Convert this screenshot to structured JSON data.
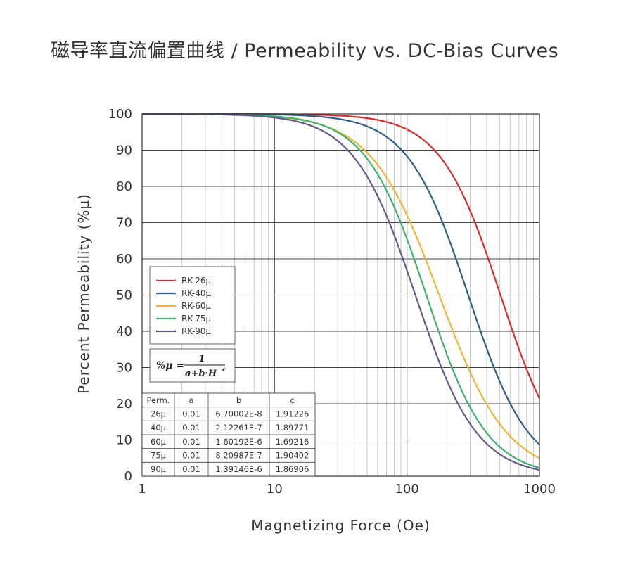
{
  "page": {
    "title": "磁导率直流偏置曲线 / Permeability vs. DC-Bias Curves"
  },
  "chart_data": {
    "type": "line",
    "title": "磁导率直流偏置曲线 / Permeability vs. DC-Bias Curves",
    "xlabel": "Magnetizing Force (Oe)",
    "ylabel": "Percent Permeability (%μ)",
    "x_scale": "log",
    "xlim": [
      1,
      1000
    ],
    "ylim": [
      0,
      100
    ],
    "x_ticks": [
      "1",
      "10",
      "100",
      "1000"
    ],
    "y_ticks": [
      "0",
      "10",
      "20",
      "30",
      "40",
      "50",
      "60",
      "70",
      "80",
      "90",
      "100"
    ],
    "grid": true,
    "legend_position": "left",
    "formula": {
      "lhs": "%μ =",
      "numerator": "1",
      "denominator": "a+b·H",
      "exponent": "c"
    },
    "series": [
      {
        "name": "RK-26μ",
        "color": "#d32f2f",
        "a": 0.01,
        "b": 6.70002e-08,
        "c": 1.91226
      },
      {
        "name": "RK-40μ",
        "color": "#2e5e8c",
        "a": 0.01,
        "b": 2.12261e-07,
        "c": 1.89771
      },
      {
        "name": "RK-60μ",
        "color": "#f0b43a",
        "a": 0.01,
        "b": 1.60192e-06,
        "c": 1.69216
      },
      {
        "name": "RK-75μ",
        "color": "#43b071",
        "a": 0.01,
        "b": 8.20987e-07,
        "c": 1.90402
      },
      {
        "name": "RK-90μ",
        "color": "#605c8c",
        "a": 0.01,
        "b": 1.39146e-06,
        "c": 1.86906
      }
    ],
    "table": {
      "headers": [
        "Perm.",
        "a",
        "b",
        "c"
      ],
      "rows": [
        [
          "26μ",
          "0.01",
          "6.70002E-8",
          "1.91226"
        ],
        [
          "40μ",
          "0.01",
          "2.12261E-7",
          "1.89771"
        ],
        [
          "60μ",
          "0.01",
          "1.60192E-6",
          "1.69216"
        ],
        [
          "75μ",
          "0.01",
          "8.20987E-7",
          "1.90402"
        ],
        [
          "90μ",
          "0.01",
          "1.39146E-6",
          "1.86906"
        ]
      ]
    }
  }
}
